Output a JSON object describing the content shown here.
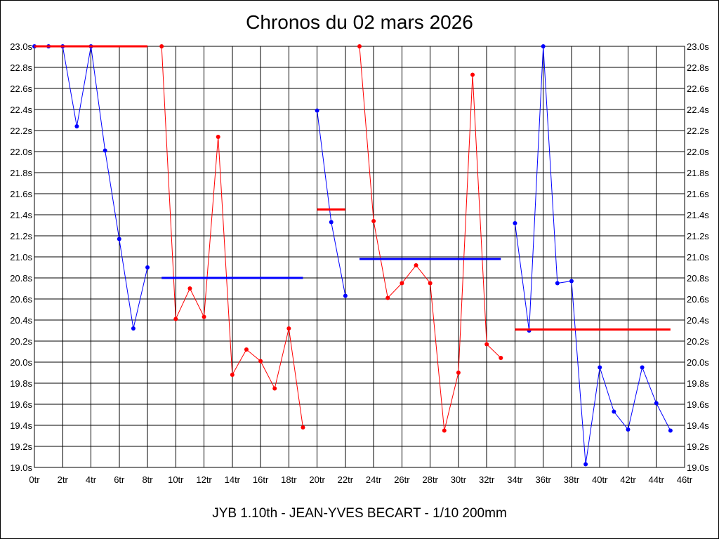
{
  "chart_data": {
    "type": "line",
    "title": "Chronos du 02 mars 2026",
    "footer": "JYB 1.10th - JEAN-YVES BECART - 1/10 200mm",
    "xlabel": "",
    "ylabel": "",
    "x_range": [
      0,
      46
    ],
    "ylim": [
      19.0,
      23.0
    ],
    "x_tick_labels": [
      "0tr",
      "2tr",
      "4tr",
      "6tr",
      "8tr",
      "10tr",
      "12tr",
      "14tr",
      "16tr",
      "18tr",
      "20tr",
      "22tr",
      "24tr",
      "26tr",
      "28tr",
      "30tr",
      "32tr",
      "34tr",
      "36tr",
      "38tr",
      "40tr",
      "42tr",
      "44tr",
      "46tr"
    ],
    "y_tick_labels": [
      "19.0s",
      "19.2s",
      "19.4s",
      "19.6s",
      "19.8s",
      "20.0s",
      "20.2s",
      "20.4s",
      "20.6s",
      "20.8s",
      "21.0s",
      "21.2s",
      "21.4s",
      "21.6s",
      "21.8s",
      "22.0s",
      "22.2s",
      "22.4s",
      "22.6s",
      "22.8s",
      "23.0s"
    ],
    "grid": true,
    "colors": {
      "blue": "#0000ff",
      "red": "#ff0000"
    },
    "series": [
      {
        "color": "#0000ff",
        "points": [
          [
            0,
            23.0
          ],
          [
            1,
            23.0
          ],
          [
            2,
            23.0
          ],
          [
            3,
            22.24
          ],
          [
            4,
            23.0
          ],
          [
            5,
            22.01
          ],
          [
            6,
            21.17
          ],
          [
            7,
            20.32
          ],
          [
            8,
            20.9
          ]
        ],
        "average": {
          "x": [
            0,
            8
          ],
          "y": 23.0,
          "color": "#ff0000"
        }
      },
      {
        "color": "#ff0000",
        "points": [
          [
            9,
            23.0
          ],
          [
            10,
            20.41
          ],
          [
            11,
            20.7
          ],
          [
            12,
            20.43
          ],
          [
            13,
            22.14
          ],
          [
            14,
            19.88
          ],
          [
            15,
            20.12
          ],
          [
            16,
            20.01
          ],
          [
            17,
            19.75
          ],
          [
            18,
            20.32
          ],
          [
            19,
            19.38
          ]
        ],
        "average": {
          "x": [
            9,
            19
          ],
          "y": 20.8,
          "color": "#0000ff"
        }
      },
      {
        "color": "#0000ff",
        "points": [
          [
            20,
            22.39
          ],
          [
            21,
            21.33
          ],
          [
            22,
            20.63
          ]
        ],
        "average": {
          "x": [
            20,
            22
          ],
          "y": 21.45,
          "color": "#ff0000"
        }
      },
      {
        "color": "#ff0000",
        "points": [
          [
            23,
            23.0
          ],
          [
            24,
            21.34
          ],
          [
            25,
            20.61
          ],
          [
            26,
            20.75
          ],
          [
            27,
            20.92
          ],
          [
            28,
            20.75
          ],
          [
            29,
            19.35
          ],
          [
            30,
            19.9
          ],
          [
            31,
            22.73
          ],
          [
            32,
            20.17
          ],
          [
            33,
            20.04
          ]
        ],
        "average": {
          "x": [
            23,
            33
          ],
          "y": 20.98,
          "color": "#0000ff"
        }
      },
      {
        "color": "#0000ff",
        "points": [
          [
            34,
            21.32
          ],
          [
            35,
            20.3
          ],
          [
            36,
            23.0
          ],
          [
            37,
            20.75
          ],
          [
            38,
            20.77
          ],
          [
            39,
            19.03
          ],
          [
            40,
            19.95
          ],
          [
            41,
            19.53
          ],
          [
            42,
            19.36
          ],
          [
            43,
            19.95
          ],
          [
            44,
            19.61
          ],
          [
            45,
            19.35
          ]
        ],
        "average": {
          "x": [
            34,
            45
          ],
          "y": 20.31,
          "color": "#ff0000"
        }
      }
    ]
  }
}
